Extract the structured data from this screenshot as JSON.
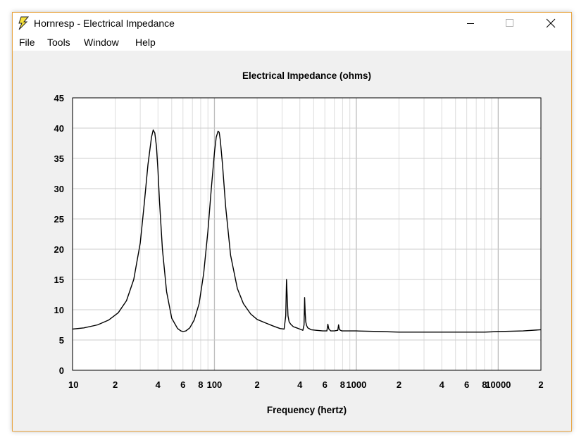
{
  "window": {
    "title": "Hornresp - Electrical Impedance",
    "icon": "lightning-bolt-icon",
    "controls": [
      "minimize-icon",
      "maximize-icon",
      "close-icon"
    ]
  },
  "menu": {
    "items": [
      {
        "label": "File"
      },
      {
        "label": "Tools"
      },
      {
        "label": "Window"
      },
      {
        "label": "Help"
      }
    ]
  },
  "chart_data": {
    "type": "line",
    "title": "Electrical Impedance (ohms)",
    "xlabel": "Frequency (hertz)",
    "ylabel": "",
    "xscale": "log",
    "xlim": [
      10,
      20000
    ],
    "ylim": [
      0,
      45
    ],
    "grid": true,
    "yticks": [
      0,
      5,
      10,
      15,
      20,
      25,
      30,
      35,
      40,
      45
    ],
    "xticks": [
      {
        "value": 10,
        "label": "10"
      },
      {
        "value": 20,
        "label": "2"
      },
      {
        "value": 40,
        "label": "4"
      },
      {
        "value": 60,
        "label": "6"
      },
      {
        "value": 80,
        "label": "8"
      },
      {
        "value": 100,
        "label": "100"
      },
      {
        "value": 200,
        "label": "2"
      },
      {
        "value": 400,
        "label": "4"
      },
      {
        "value": 600,
        "label": "6"
      },
      {
        "value": 800,
        "label": "8"
      },
      {
        "value": 1000,
        "label": "1000"
      },
      {
        "value": 2000,
        "label": "2"
      },
      {
        "value": 4000,
        "label": "4"
      },
      {
        "value": 6000,
        "label": "6"
      },
      {
        "value": 8000,
        "label": "8"
      },
      {
        "value": 10000,
        "label": "10000"
      },
      {
        "value": 20000,
        "label": "2"
      }
    ],
    "series": [
      {
        "color": "#000000",
        "x": [
          10,
          12,
          15,
          18,
          21,
          24,
          27,
          30,
          32,
          34,
          36,
          37,
          38,
          39,
          40,
          41,
          43,
          46,
          50,
          55,
          58,
          60,
          63,
          67,
          72,
          78,
          84,
          90,
          95,
          100,
          103,
          106,
          108,
          110,
          114,
          120,
          130,
          145,
          160,
          180,
          200,
          230,
          260,
          290,
          310,
          318,
          322,
          326,
          330,
          336,
          345,
          360,
          380,
          400,
          420,
          428,
          432,
          436,
          440,
          446,
          455,
          480,
          520,
          580,
          620,
          630,
          640,
          660,
          700,
          740,
          750,
          760,
          790,
          830,
          1000,
          1500,
          2000,
          3000,
          5000,
          8000,
          10000,
          15000,
          20000
        ],
        "y": [
          6.8,
          7.0,
          7.5,
          8.3,
          9.5,
          11.5,
          15.0,
          21.0,
          27.5,
          34.0,
          38.5,
          39.7,
          39.2,
          37.0,
          33.0,
          28.0,
          20.0,
          13.0,
          8.6,
          6.9,
          6.5,
          6.4,
          6.5,
          7.0,
          8.3,
          11.0,
          16.0,
          23.0,
          30.0,
          36.0,
          38.5,
          39.5,
          39.3,
          38.0,
          34.0,
          27.0,
          19.0,
          13.5,
          11.0,
          9.3,
          8.4,
          7.8,
          7.3,
          6.9,
          6.8,
          9.0,
          15.0,
          12.0,
          9.0,
          8.0,
          7.6,
          7.2,
          7.0,
          6.8,
          6.6,
          7.5,
          12.0,
          9.5,
          8.0,
          7.4,
          7.0,
          6.7,
          6.6,
          6.5,
          6.5,
          7.6,
          6.8,
          6.5,
          6.5,
          6.6,
          7.5,
          6.7,
          6.5,
          6.5,
          6.5,
          6.4,
          6.3,
          6.3,
          6.3,
          6.3,
          6.4,
          6.5,
          6.7
        ]
      }
    ]
  }
}
